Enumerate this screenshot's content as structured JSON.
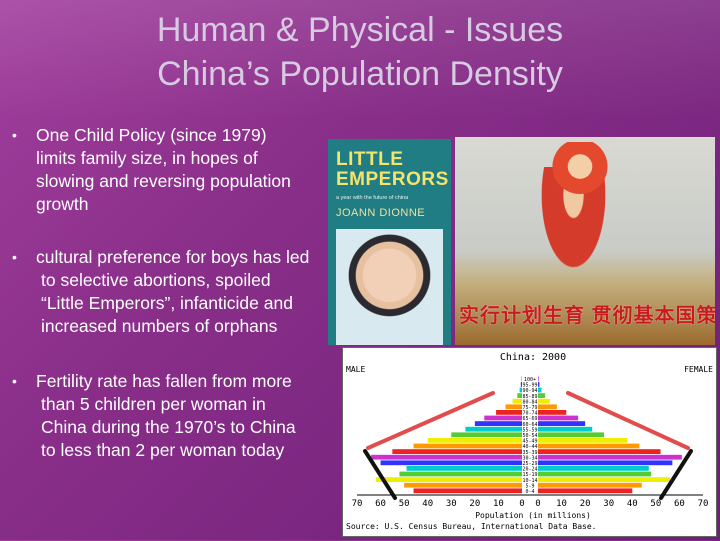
{
  "slide": {
    "title_line1": "Human & Physical - Issues",
    "title_line2": "China’s Population Density",
    "bullets": [
      "One Child Policy (since 1979) limits family size, in hopes of slowing and reversing population growth",
      "cultural preference for boys has led to selective abortions, spoiled “Little Emperors”, infanticide and increased numbers of orphans",
      "Fertility rate has fallen from more than 5 children per woman in China during the 1970’s to China to less than 2 per woman today"
    ],
    "bullet_symbol": "•"
  },
  "book": {
    "title_line1": "LITTLE",
    "title_line2": "EMPERORS",
    "subtitle": "a year with the future of china",
    "author": "JOANN DIONNE"
  },
  "poster": {
    "slogan": "实行计划生育 贯彻基本国策"
  },
  "chart_data": {
    "type": "bar",
    "title": "China: 2000",
    "left_label": "MALE",
    "right_label": "FEMALE",
    "xlabel": "Population (in millions)",
    "source": "Source: U.S. Census Bureau, International Data Base.",
    "x_ticks": [
      "70",
      "60",
      "50",
      "40",
      "30",
      "20",
      "10",
      "0",
      "0",
      "10",
      "20",
      "30",
      "40",
      "50",
      "60",
      "70"
    ],
    "age_groups": [
      "0-4",
      "5-9",
      "10-14",
      "15-19",
      "20-24",
      "25-29",
      "30-34",
      "35-39",
      "40-44",
      "45-49",
      "50-54",
      "55-59",
      "60-64",
      "65-69",
      "70-74",
      "75-79",
      "80-84",
      "85-89",
      "90-94",
      "95-99",
      "100+"
    ],
    "series": [
      {
        "name": "MALE",
        "values": [
          46,
          50,
          62,
          52,
          49,
          60,
          64,
          55,
          46,
          40,
          30,
          24,
          20,
          16,
          11,
          7,
          4,
          2,
          1,
          0.5,
          0.2
        ]
      },
      {
        "name": "FEMALE",
        "values": [
          40,
          44,
          56,
          48,
          47,
          57,
          61,
          52,
          43,
          38,
          28,
          23,
          20,
          17,
          12,
          8,
          5,
          3,
          1.5,
          0.6,
          0.3
        ]
      }
    ],
    "xlim": [
      0,
      70
    ]
  }
}
